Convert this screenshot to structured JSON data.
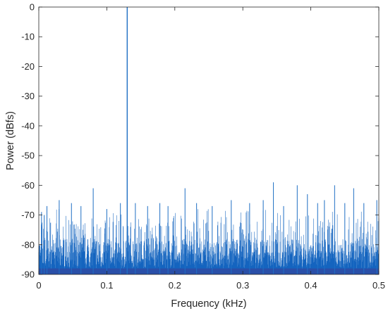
{
  "chart_data": {
    "type": "line",
    "title": "",
    "xlabel": "Frequency (kHz)",
    "ylabel": "Power (dBfs)",
    "xlim": [
      0,
      0.5
    ],
    "ylim": [
      -90,
      0
    ],
    "xticks": [
      0,
      0.1,
      0.2,
      0.3,
      0.4,
      0.5
    ],
    "xtick_labels": [
      "0",
      "0.1",
      "0.2",
      "0.3",
      "0.4",
      "0.5"
    ],
    "yticks": [
      0,
      -10,
      -20,
      -30,
      -40,
      -50,
      -60,
      -70,
      -80,
      -90
    ],
    "ytick_labels": [
      "0",
      "-10",
      "-20",
      "-30",
      "-40",
      "-50",
      "-60",
      "-70",
      "-80",
      "-90"
    ],
    "grid": false,
    "line_color": "#1f6fc4",
    "fill_color": "#1464bf",
    "noise_floor_band": [
      -90,
      -88
    ],
    "noise_floor_color": "#2a4fa8",
    "series": [
      {
        "peaks": [
          {
            "x": 0.13,
            "y": 0
          },
          {
            "x": 0.004,
            "y": -69
          },
          {
            "x": 0.008,
            "y": -70
          },
          {
            "x": 0.012,
            "y": -67
          },
          {
            "x": 0.03,
            "y": -65
          },
          {
            "x": 0.048,
            "y": -66
          },
          {
            "x": 0.062,
            "y": -67
          },
          {
            "x": 0.08,
            "y": -61
          },
          {
            "x": 0.1,
            "y": -68
          },
          {
            "x": 0.12,
            "y": -66
          },
          {
            "x": 0.142,
            "y": -66
          },
          {
            "x": 0.16,
            "y": -67
          },
          {
            "x": 0.178,
            "y": -66
          },
          {
            "x": 0.19,
            "y": -67
          },
          {
            "x": 0.215,
            "y": -61
          },
          {
            "x": 0.232,
            "y": -66
          },
          {
            "x": 0.255,
            "y": -67
          },
          {
            "x": 0.283,
            "y": -65
          },
          {
            "x": 0.31,
            "y": -66
          },
          {
            "x": 0.33,
            "y": -65
          },
          {
            "x": 0.345,
            "y": -59
          },
          {
            "x": 0.36,
            "y": -67
          },
          {
            "x": 0.38,
            "y": -60
          },
          {
            "x": 0.395,
            "y": -63
          },
          {
            "x": 0.41,
            "y": -66
          },
          {
            "x": 0.42,
            "y": -65
          },
          {
            "x": 0.435,
            "y": -60
          },
          {
            "x": 0.45,
            "y": -66
          },
          {
            "x": 0.463,
            "y": -61
          },
          {
            "x": 0.478,
            "y": -66
          },
          {
            "x": 0.497,
            "y": -65
          }
        ]
      }
    ]
  }
}
